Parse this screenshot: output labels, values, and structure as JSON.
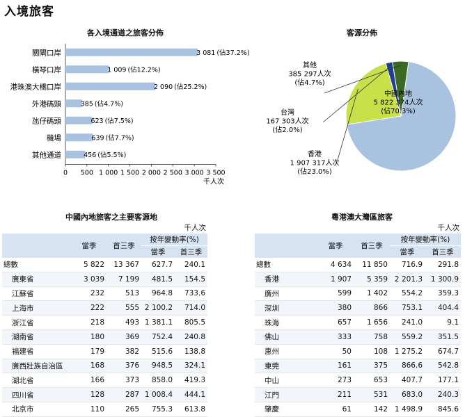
{
  "page_title": "入境旅客",
  "bar_chart": {
    "title": "各入境通道之旅客分佈",
    "xunit": "千人次"
  },
  "pie_chart": {
    "title": "客源分佈"
  },
  "chart_data": [
    {
      "type": "bar",
      "orientation": "horizontal",
      "title": "各入境通道之旅客分佈",
      "categories": [
        "關閘口岸",
        "橫琴口岸",
        "港珠澳大橋口岸",
        "外港碼頭",
        "氹仔碼頭",
        "機場",
        "其他通道"
      ],
      "values": [
        3081,
        1009,
        2090,
        385,
        623,
        639,
        456
      ],
      "value_labels": [
        "3 081",
        "1 009",
        "2 090",
        "385",
        "623",
        "639",
        "456"
      ],
      "shares": [
        "(佔37.2%)",
        "(佔12.2%)",
        "(佔25.2%)",
        "(佔4.7%)",
        "(佔7.5%)",
        "(佔7.7%)",
        "(佔5.5%)"
      ],
      "xlim": [
        0,
        3500
      ],
      "xticks": [
        "0",
        "500",
        "1 000",
        "1 500",
        "2 000",
        "2 500",
        "3 000",
        "3 500"
      ],
      "xlabel": "千人次",
      "color": "#a8c2e0"
    },
    {
      "type": "pie",
      "title": "客源分佈",
      "slices": [
        {
          "label": "中國內地",
          "value": "5 822 374人次",
          "share": "(佔70.3%)",
          "percent": 70.3,
          "color": "#a8c2e0"
        },
        {
          "label": "香港",
          "value": "1 907 317人次",
          "share": "(佔23.0%)",
          "percent": 23.0,
          "color": "#c8e14a"
        },
        {
          "label": "台灣",
          "value": "167 303人次",
          "share": "(佔2.0%)",
          "percent": 2.0,
          "color": "#1f3f8f"
        },
        {
          "label": "其他",
          "value": "385 297人次",
          "share": "(佔4.7%)",
          "percent": 4.7,
          "color": "#3c6a25"
        }
      ]
    }
  ],
  "mainland_table": {
    "title": "中國內地旅客之主要客源地",
    "unit": "千人次",
    "headers": {
      "current": "當季",
      "first3": "首三季",
      "rate": "按年變動率(%)",
      "rate_current": "當季",
      "rate_first3": "首三季"
    },
    "rows": [
      {
        "name": "總數",
        "current": "5 822",
        "first3": "13 367",
        "rate_current": "627.7",
        "rate_first3": "240.1"
      },
      {
        "name": "廣東省",
        "current": "3 039",
        "first3": "7 199",
        "rate_current": "481.5",
        "rate_first3": "154.5"
      },
      {
        "name": "江蘇省",
        "current": "232",
        "first3": "513",
        "rate_current": "964.8",
        "rate_first3": "733.6"
      },
      {
        "name": "上海市",
        "current": "222",
        "first3": "555",
        "rate_current": "2 100.2",
        "rate_first3": "714.0"
      },
      {
        "name": "浙江省",
        "current": "218",
        "first3": "493",
        "rate_current": "1 381.1",
        "rate_first3": "805.5"
      },
      {
        "name": "湖南省",
        "current": "180",
        "first3": "369",
        "rate_current": "752.4",
        "rate_first3": "240.8"
      },
      {
        "name": "福建省",
        "current": "179",
        "first3": "382",
        "rate_current": "515.6",
        "rate_first3": "138.8"
      },
      {
        "name": "廣西壯族自治區",
        "current": "168",
        "first3": "376",
        "rate_current": "948.5",
        "rate_first3": "324.1"
      },
      {
        "name": "湖北省",
        "current": "166",
        "first3": "373",
        "rate_current": "858.0",
        "rate_first3": "419.3"
      },
      {
        "name": "四川省",
        "current": "128",
        "first3": "287",
        "rate_current": "1 008.4",
        "rate_first3": "444.1"
      },
      {
        "name": "北京市",
        "current": "110",
        "first3": "265",
        "rate_current": "755.3",
        "rate_first3": "613.8"
      }
    ]
  },
  "gba_table": {
    "title": "粵港澳大灣區旅客",
    "unit": "千人次",
    "headers": {
      "current": "當季",
      "first3": "首三季",
      "rate": "按年變動率(%)",
      "rate_current": "當季",
      "rate_first3": "首三季"
    },
    "rows": [
      {
        "name": "總數",
        "current": "4 634",
        "first3": "11 850",
        "rate_current": "716.9",
        "rate_first3": "291.8"
      },
      {
        "name": "香港",
        "current": "1 907",
        "first3": "5 359",
        "rate_current": "2 201.3",
        "rate_first3": "1 300.9"
      },
      {
        "name": "廣州",
        "current": "599",
        "first3": "1 402",
        "rate_current": "554.2",
        "rate_first3": "359.3"
      },
      {
        "name": "深圳",
        "current": "380",
        "first3": "866",
        "rate_current": "753.1",
        "rate_first3": "404.4"
      },
      {
        "name": "珠海",
        "current": "657",
        "first3": "1 656",
        "rate_current": "241.0",
        "rate_first3": "9.1"
      },
      {
        "name": "佛山",
        "current": "333",
        "first3": "758",
        "rate_current": "559.2",
        "rate_first3": "351.5"
      },
      {
        "name": "惠州",
        "current": "50",
        "first3": "108",
        "rate_current": "1 275.2",
        "rate_first3": "674.7"
      },
      {
        "name": "東莞",
        "current": "161",
        "first3": "375",
        "rate_current": "866.6",
        "rate_first3": "542.8"
      },
      {
        "name": "中山",
        "current": "273",
        "first3": "653",
        "rate_current": "407.7",
        "rate_first3": "177.1"
      },
      {
        "name": "江門",
        "current": "211",
        "first3": "531",
        "rate_current": "683.0",
        "rate_first3": "240.3"
      },
      {
        "name": "肇慶",
        "current": "61",
        "first3": "142",
        "rate_current": "1 498.9",
        "rate_first3": "845.6"
      }
    ]
  }
}
